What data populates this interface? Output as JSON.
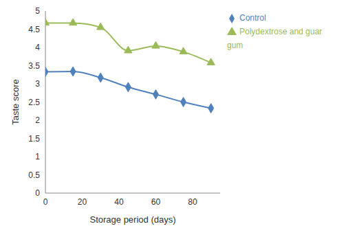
{
  "chart_data": {
    "type": "line",
    "x_label": "Storage period (days)",
    "y_label": "Taste score",
    "x": [
      0,
      15,
      30,
      45,
      60,
      75,
      90
    ],
    "series": [
      {
        "name": "Control",
        "color": "#4f81bd",
        "marker": "diamond",
        "line_style": "smooth",
        "values": [
          3.33,
          3.34,
          3.17,
          2.91,
          2.71,
          2.5,
          2.33
        ]
      },
      {
        "name": "Polydextrose and guar gum",
        "color": "#9bbb59",
        "marker": "triangle",
        "line_style": "smooth",
        "values": [
          4.67,
          4.67,
          4.55,
          3.91,
          4.04,
          3.88,
          3.58
        ]
      }
    ],
    "xlim": [
      0,
      95
    ],
    "ylim": [
      0,
      5
    ],
    "xticks": [
      0,
      20,
      40,
      60,
      80
    ],
    "yticks": [
      0,
      0.5,
      1,
      1.5,
      2,
      2.5,
      3,
      3.5,
      4,
      4.5,
      5
    ],
    "grid": false,
    "legend": "top right"
  }
}
